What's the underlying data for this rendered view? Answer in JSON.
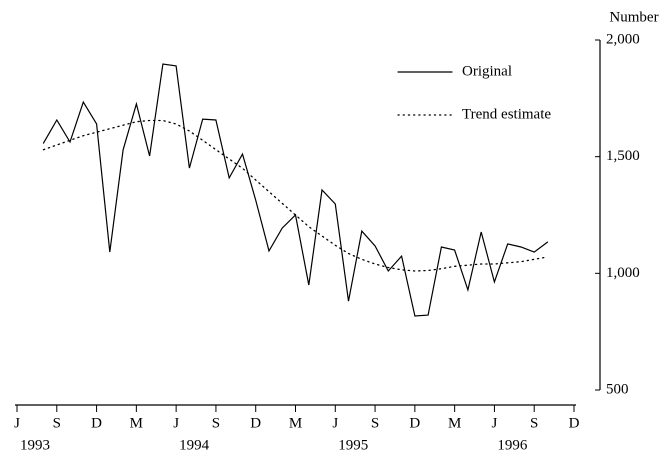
{
  "chart_data": {
    "type": "line",
    "y_axis_label": "Number",
    "categories": [
      "J",
      null,
      null,
      "S",
      null,
      null,
      "D",
      null,
      null,
      "M",
      null,
      null,
      "J",
      null,
      null,
      "S",
      null,
      null,
      "D",
      null,
      null,
      "M",
      null,
      null,
      "J",
      null,
      null,
      "S",
      null,
      null,
      "D",
      null,
      null,
      "M",
      null,
      null,
      "J",
      null,
      null,
      "S",
      null,
      null,
      "D"
    ],
    "category_years": [
      "1993",
      null,
      null,
      null,
      null,
      null,
      null,
      null,
      null,
      null,
      null,
      null,
      "1994",
      null,
      null,
      null,
      null,
      null,
      null,
      null,
      null,
      null,
      null,
      null,
      "1995",
      null,
      null,
      null,
      null,
      null,
      null,
      null,
      null,
      null,
      null,
      null,
      "1996",
      null,
      null,
      null,
      null,
      null,
      null
    ],
    "series": [
      {
        "name": "Original",
        "color": "#000000",
        "style": "solid",
        "values": [
          null,
          null,
          1558,
          1657,
          1563,
          1734,
          1640,
          1091,
          1529,
          1726,
          1503,
          1897,
          1889,
          1451,
          1661,
          1657,
          1409,
          1511,
          1314,
          1096,
          1194,
          1250,
          950,
          1357,
          1297,
          881,
          1181,
          1117,
          1010,
          1074,
          817,
          821,
          1113,
          1100,
          929,
          1177,
          963,
          1126,
          1113,
          1091,
          1134,
          null,
          null
        ]
      },
      {
        "name": "Trend estimate",
        "color": "#000000",
        "style": "dotted",
        "values": [
          null,
          null,
          1530,
          1550,
          1570,
          1590,
          1605,
          1620,
          1635,
          1650,
          1655,
          1655,
          1640,
          1610,
          1570,
          1530,
          1490,
          1450,
          1400,
          1350,
          1300,
          1250,
          1200,
          1160,
          1120,
          1085,
          1060,
          1040,
          1025,
          1015,
          1010,
          1012,
          1020,
          1030,
          1035,
          1040,
          1040,
          1045,
          1050,
          1060,
          1070,
          null,
          null
        ]
      }
    ],
    "ylim": [
      500,
      2000
    ],
    "yticks": [
      {
        "value": 500,
        "label": "500"
      },
      {
        "value": 1000,
        "label": "1,000"
      },
      {
        "value": 1500,
        "label": "1,500"
      },
      {
        "value": 2000,
        "label": "2,000"
      }
    ],
    "y_axis_side": "right",
    "legend": "top-right",
    "grid": false
  }
}
